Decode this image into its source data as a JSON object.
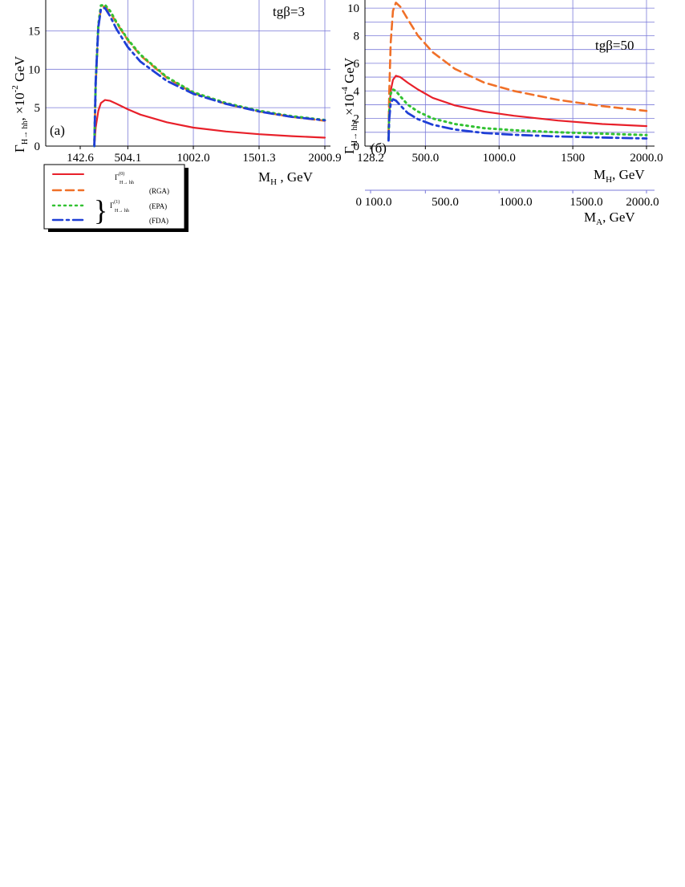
{
  "colors": {
    "grid": "#7a7ad8",
    "tree": "#e8202a",
    "rga": "#f07028",
    "epa": "#33c233",
    "fda": "#1f3fd6"
  },
  "legend": {
    "gamma0": "Γ",
    "gamma0_sup": "(0)",
    "gamma0_sub": "H→ hh",
    "gamma1": "Γ",
    "gamma1_sup": "(1)",
    "gamma1_sub": "H→ hh",
    "rga": "(RGA)",
    "epa": "(EPA)",
    "fda": "(FDA)"
  },
  "chart_data": [
    {
      "type": "line",
      "panel_label": "(a)",
      "annotation": "tgβ=3",
      "ylabel_main": "Γ",
      "ylabel_sub": "H→ hh",
      "ylabel_rest": ", ×10",
      "ylabel_exp": "-2",
      "ylabel_unit": " GeV",
      "xlabel_main": "M",
      "xlabel_sub": "H",
      "xlabel_unit": " , GeV",
      "xlim": [
        142.6,
        2030
      ],
      "ylim": [
        0,
        18.5
      ],
      "x_ticks": [
        142.6,
        504.1,
        1002.0,
        1501.3,
        2000.9
      ],
      "x_tick_labels": [
        "142.6",
        "504.1",
        "1002.0",
        "1501.3",
        "2000.9"
      ],
      "y_ticks": [
        0,
        5,
        10,
        15
      ],
      "y_tick_labels": [
        "0",
        "5",
        "10",
        "15"
      ],
      "series": [
        {
          "key": "tree",
          "style": "solid",
          "x": [
            250,
            260,
            280,
            300,
            330,
            370,
            420,
            504,
            600,
            800,
            1002,
            1250,
            1501,
            1750,
            2001
          ],
          "y": [
            0,
            2.4,
            4.6,
            5.6,
            6.0,
            5.9,
            5.5,
            4.8,
            4.1,
            3.1,
            2.4,
            1.9,
            1.55,
            1.3,
            1.1
          ]
        },
        {
          "key": "rga",
          "style": "dash",
          "x": [
            250,
            260,
            280,
            300,
            330,
            370,
            420,
            504,
            600,
            800,
            1002,
            1250,
            1501,
            1750,
            2001
          ],
          "y": [
            0,
            8.0,
            15.5,
            18.0,
            18.2,
            17.4,
            16.0,
            13.8,
            11.8,
            8.9,
            6.9,
            5.5,
            4.5,
            3.8,
            3.3
          ]
        },
        {
          "key": "epa",
          "style": "dot",
          "x": [
            250,
            260,
            280,
            300,
            330,
            370,
            420,
            504,
            600,
            800,
            1002,
            1250,
            1501,
            1750,
            2001
          ],
          "y": [
            0,
            8.2,
            15.8,
            18.3,
            18.4,
            17.6,
            16.1,
            13.9,
            11.9,
            9.0,
            7.0,
            5.6,
            4.6,
            3.9,
            3.4
          ]
        },
        {
          "key": "fda",
          "style": "dashdot",
          "x": [
            250,
            260,
            280,
            300,
            330,
            370,
            420,
            504,
            600,
            800,
            1002,
            1250,
            1501,
            1750,
            2001
          ],
          "y": [
            0,
            8.4,
            15.5,
            17.8,
            18.0,
            16.9,
            15.2,
            12.9,
            11.0,
            8.5,
            6.8,
            5.5,
            4.5,
            3.8,
            3.35
          ]
        }
      ]
    },
    {
      "type": "line",
      "panel_label": "(б)",
      "annotation": "tgβ=50",
      "ylabel_main": "Γ",
      "ylabel_sub": "H→ hh",
      "ylabel_rest": ", ×10",
      "ylabel_exp": "-4",
      "ylabel_unit": " GeV",
      "xlabel_main": "M",
      "xlabel_sub": "H",
      "xlabel_unit": ", GeV",
      "xlabel2_main": "M",
      "xlabel2_sub": "A",
      "xlabel2_unit": ", GeV",
      "xlim": [
        128.2,
        2030
      ],
      "ylim": [
        0,
        10.3
      ],
      "x_ticks": [
        128.2,
        500,
        1000,
        1500,
        2000
      ],
      "x_tick_labels": [
        "128.2",
        "500.0",
        "1000.0",
        "1500",
        "2000.0"
      ],
      "x2_ticks": [
        0,
        100,
        500,
        1000,
        1500,
        2000
      ],
      "x2_tick_labels": [
        "0 100.0",
        "500.0",
        "1000.0",
        "1500.0",
        "2000.0"
      ],
      "y_ticks": [
        0,
        2,
        4,
        6,
        8,
        10
      ],
      "y_tick_labels": [
        "0",
        "2",
        "4",
        "6",
        "8",
        "10"
      ],
      "series": [
        {
          "key": "tree",
          "style": "solid",
          "x": [
            250,
            255,
            265,
            280,
            300,
            330,
            380,
            450,
            550,
            700,
            900,
            1100,
            1400,
            1700,
            2000
          ],
          "y": [
            0.6,
            2.5,
            4.0,
            4.8,
            5.1,
            5.0,
            4.6,
            4.1,
            3.5,
            2.95,
            2.5,
            2.2,
            1.85,
            1.6,
            1.45
          ]
        },
        {
          "key": "rga",
          "style": "dash",
          "x": [
            250,
            255,
            265,
            280,
            300,
            330,
            380,
            450,
            550,
            700,
            900,
            1100,
            1400,
            1700,
            2000
          ],
          "y": [
            1.0,
            4.0,
            7.5,
            9.8,
            10.4,
            10.1,
            9.2,
            8.0,
            6.8,
            5.6,
            4.6,
            4.0,
            3.35,
            2.9,
            2.55
          ]
        },
        {
          "key": "epa",
          "style": "dot",
          "x": [
            250,
            255,
            265,
            280,
            300,
            330,
            380,
            450,
            550,
            700,
            900,
            1100,
            1400,
            1700,
            2000
          ],
          "y": [
            0.5,
            2.5,
            3.8,
            4.1,
            4.0,
            3.6,
            3.0,
            2.5,
            2.0,
            1.6,
            1.3,
            1.15,
            1.0,
            0.9,
            0.8
          ]
        },
        {
          "key": "fda",
          "style": "dashdot",
          "x": [
            250,
            255,
            265,
            280,
            300,
            330,
            380,
            450,
            550,
            700,
            900,
            1100,
            1400,
            1700,
            2000
          ],
          "y": [
            0.4,
            2.0,
            3.1,
            3.4,
            3.3,
            2.95,
            2.4,
            1.95,
            1.55,
            1.2,
            0.95,
            0.82,
            0.7,
            0.62,
            0.55
          ]
        }
      ]
    }
  ]
}
